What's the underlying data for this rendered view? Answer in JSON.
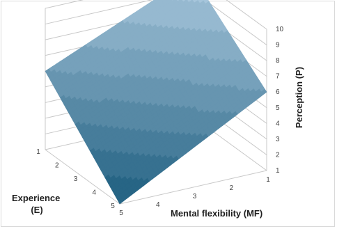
{
  "chart_data": {
    "type": "surface",
    "title": "",
    "xlabel": "Mental flexibility (MF)",
    "ylabel": "Experience\n(E)",
    "zlabel": "Perception (P)",
    "x_ticks": [
      "1",
      "2",
      "3",
      "4",
      "5"
    ],
    "y_ticks": [
      "1",
      "2",
      "3",
      "4",
      "5"
    ],
    "z_ticks": [
      "1",
      "2",
      "3",
      "4",
      "5",
      "6",
      "7",
      "8",
      "9",
      "10"
    ],
    "xlim": [
      1,
      5
    ],
    "ylim": [
      1,
      5
    ],
    "zlim": [
      1,
      10
    ],
    "grid": true,
    "surface_corners": [
      {
        "mf": 5,
        "e": 5,
        "p": 1
      },
      {
        "mf": 1,
        "e": 5,
        "p": 6
      },
      {
        "mf": 1,
        "e": 1,
        "p": 10
      },
      {
        "mf": 5,
        "e": 1,
        "p": 6
      }
    ],
    "colors": {
      "low": "#1f5f80",
      "high": "#aecbe0",
      "grid": "#c8c8c8",
      "band_line": "#ffffff"
    }
  }
}
